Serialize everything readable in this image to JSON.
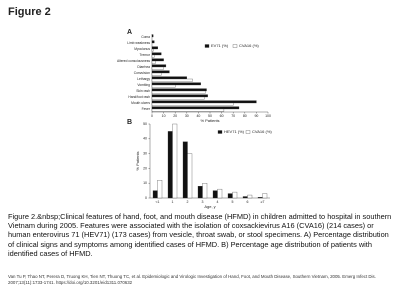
{
  "header": {
    "title": "Figure 2"
  },
  "chart_data": [
    {
      "type": "bar",
      "panel": "A",
      "orientation": "horizontal",
      "xlabel": "% Patients",
      "categories": [
        "Coma",
        "Limb weakness",
        "Myoclonus",
        "Tremor",
        "Altered consciousness",
        "Diarrhea",
        "Convulsion",
        "Lethargy",
        "Vomiting",
        "Skin rash",
        "Hand/foot rash",
        "Mouth ulcers",
        "Fever"
      ],
      "series": [
        {
          "name": "EV71 (%)",
          "color": "#111111",
          "values": [
            1,
            2,
            5,
            8,
            10,
            12,
            15,
            30,
            42,
            47,
            48,
            90,
            75
          ]
        },
        {
          "name": "CVA16 (%)",
          "color": "#ffffff",
          "values": [
            0,
            0,
            1,
            2,
            3,
            10,
            8,
            35,
            20,
            46,
            45,
            70,
            62
          ]
        }
      ],
      "xlim": [
        0,
        100
      ],
      "xticks": [
        0,
        10,
        20,
        30,
        40,
        50,
        60,
        70,
        80,
        90,
        100
      ]
    },
    {
      "type": "bar",
      "panel": "B",
      "orientation": "vertical",
      "xlabel": "Age, y",
      "ylabel": "% Patients",
      "categories": [
        "<1",
        "1",
        "2",
        "3",
        "4",
        "5",
        "6",
        "≥7"
      ],
      "series": [
        {
          "name": "HEV71 (%)",
          "color": "#111111",
          "values": [
            5,
            45,
            38,
            8,
            5,
            3,
            1,
            0.5
          ]
        },
        {
          "name": "CVA16 (%)",
          "color": "#ffffff",
          "values": [
            12,
            50,
            30,
            10,
            6,
            4,
            2,
            3
          ]
        }
      ],
      "ylim": [
        0,
        50
      ],
      "yticks": [
        0,
        10,
        20,
        30,
        40,
        50
      ]
    }
  ],
  "caption": "Figure 2.&nbsp;Clinical features of hand, foot, and mouth disease (HFMD) in children admitted to hospital in southern Vietnam during 2005. Features were associated with the isolation of coxsackievirus A16 (CVA16) (214 cases) or human enterovirus 71 (HEV71) (173 cases) from vesicle, throat swab, or stool specimens. A) Percentage distribution of clinical signs and symptoms among identified cases of HFMD. B) Percentage age distribution of patients with identified cases of HFMD.",
  "citation": "Van Tu P, Thao NT, Perera D, Truong KH, Tien NT, Thuong TC, et al. Epidemiologic and Virologic Investigation of Hand, Foot, and Mouth Disease, Southern Vietnam, 2005. Emerg Infect Dis. 2007;13(11):1733-1741. https://doi.org/10.3201/eid1311.070632"
}
